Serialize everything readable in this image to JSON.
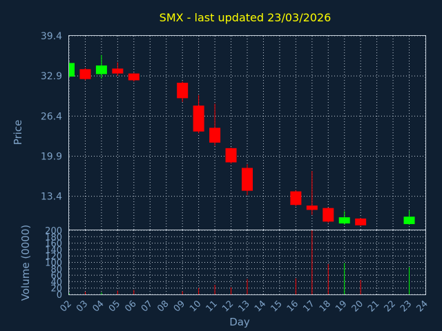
{
  "chart_data": {
    "type": "candlestick",
    "title": "SMX - last updated 23/03/2026",
    "xlabel": "Day",
    "price_panel": {
      "ylabel": "Price",
      "ylim": [
        8.0,
        39.4
      ],
      "yticks": [
        "39.4",
        "32.9",
        "26.4",
        "19.9",
        "13.4"
      ],
      "ytick_values": [
        39.4,
        32.9,
        26.4,
        19.9,
        13.4
      ],
      "grid": true
    },
    "volume_panel": {
      "ylabel": "Volume (0000)",
      "ylim": [
        0,
        200
      ],
      "yticks": [
        "200",
        "180",
        "160",
        "140",
        "120",
        "100",
        "80",
        "60",
        "40",
        "20",
        "0"
      ],
      "ytick_values": [
        200,
        180,
        160,
        140,
        120,
        100,
        80,
        60,
        40,
        20,
        0
      ],
      "grid": true
    },
    "categories": [
      "02",
      "03",
      "04",
      "05",
      "06",
      "07",
      "08",
      "09",
      "10",
      "11",
      "12",
      "13",
      "14",
      "15",
      "16",
      "17",
      "18",
      "19",
      "20",
      "21",
      "22",
      "23",
      "24"
    ],
    "candles": [
      {
        "x": "02",
        "open": 32.8,
        "close": 35.0,
        "high": 35.2,
        "low": 32.6,
        "volume": 5
      },
      {
        "x": "03",
        "open": 34.0,
        "close": 32.4,
        "high": 34.2,
        "low": 32.2,
        "volume": 8
      },
      {
        "x": "04",
        "open": 33.2,
        "close": 34.6,
        "high": 36.3,
        "low": 32.5,
        "volume": 6
      },
      {
        "x": "05",
        "open": 34.1,
        "close": 33.3,
        "high": 35.1,
        "low": 32.9,
        "volume": 12
      },
      {
        "x": "06",
        "open": 33.3,
        "close": 32.2,
        "high": 33.4,
        "low": 32.0,
        "volume": 14
      },
      {
        "x": "09",
        "open": 31.8,
        "close": 29.3,
        "high": 32.0,
        "low": 28.7,
        "volume": 10
      },
      {
        "x": "10",
        "open": 28.1,
        "close": 23.9,
        "high": 29.8,
        "low": 23.6,
        "volume": 20
      },
      {
        "x": "11",
        "open": 24.5,
        "close": 22.1,
        "high": 28.4,
        "low": 21.6,
        "volume": 30
      },
      {
        "x": "12",
        "open": 21.2,
        "close": 18.9,
        "high": 21.3,
        "low": 18.7,
        "volume": 22
      },
      {
        "x": "13",
        "open": 18.0,
        "close": 14.3,
        "high": 18.6,
        "low": 13.6,
        "volume": 48
      },
      {
        "x": "16",
        "open": 14.2,
        "close": 12.0,
        "high": 14.4,
        "low": 11.8,
        "volume": 50
      },
      {
        "x": "17",
        "open": 11.9,
        "close": 11.2,
        "high": 17.5,
        "low": 10.4,
        "volume": 200
      },
      {
        "x": "18",
        "open": 11.5,
        "close": 9.3,
        "high": 11.6,
        "low": 9.1,
        "volume": 95
      },
      {
        "x": "19",
        "open": 9.0,
        "close": 10.0,
        "high": 11.0,
        "low": 8.8,
        "volume": 98
      },
      {
        "x": "20",
        "open": 9.8,
        "close": 8.7,
        "high": 9.9,
        "low": 8.6,
        "volume": 45
      },
      {
        "x": "23",
        "open": 8.9,
        "close": 10.1,
        "high": 11.1,
        "low": 8.8,
        "volume": 85
      }
    ],
    "colors": {
      "up": "#00ff00",
      "down": "#ff0000",
      "title": "#ffff00",
      "axis_text": "#7fa3c8",
      "background": "#0f1f31",
      "grid": "#c9d3de"
    }
  }
}
